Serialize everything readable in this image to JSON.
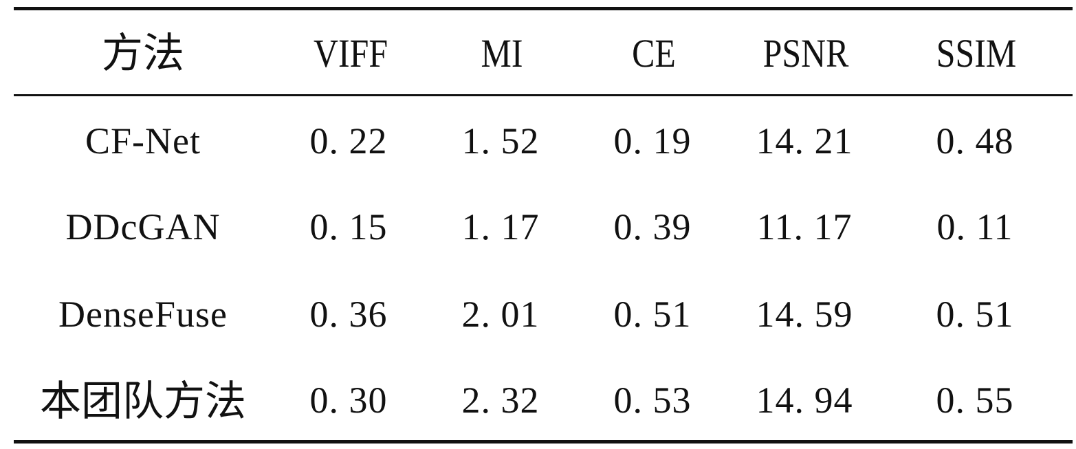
{
  "table": {
    "headers": [
      "方法",
      "VIFF",
      "MI",
      "CE",
      "PSNR",
      "SSIM"
    ],
    "rows": [
      [
        "CF-Net",
        "0. 22",
        "1. 52",
        "0. 19",
        "14. 21",
        "0. 48"
      ],
      [
        "DDcGAN",
        "0. 15",
        "1. 17",
        "0. 39",
        "11. 17",
        "0. 11"
      ],
      [
        "DenseFuse",
        "0. 36",
        "2. 01",
        "0. 51",
        "14. 59",
        "0. 51"
      ],
      [
        "本团队方法",
        "0. 30",
        "2. 32",
        "0. 53",
        "14. 94",
        "0. 55"
      ]
    ]
  }
}
